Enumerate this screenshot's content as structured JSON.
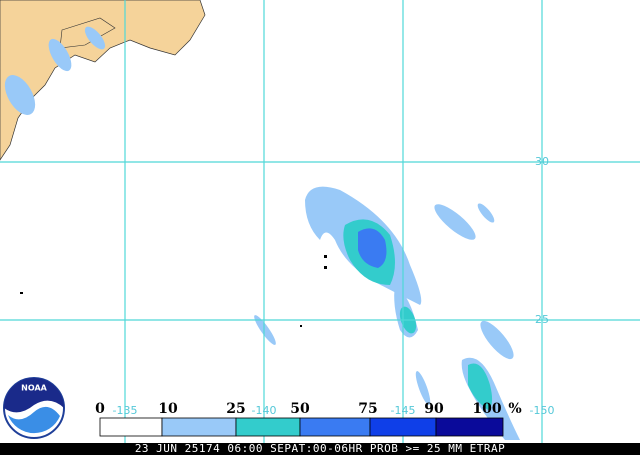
{
  "map": {
    "lat_labels": [
      "30",
      "25"
    ],
    "lon_labels": [
      "-135",
      "-140",
      "-145",
      "-150"
    ],
    "legend": {
      "labels": [
        "0",
        "10",
        "25",
        "50",
        "75",
        "90",
        "100"
      ],
      "colors": [
        "#ffffff",
        "#99c9f8",
        "#33cccc",
        "#3a7bf2",
        "#0f3fe8",
        "#0a0a9a"
      ],
      "unit": "%"
    },
    "logo": "NOAA",
    "footer": "23 JUN 25174 06:00 SEPAT:00-06HR PROB >= 25 MM ETRAP"
  }
}
